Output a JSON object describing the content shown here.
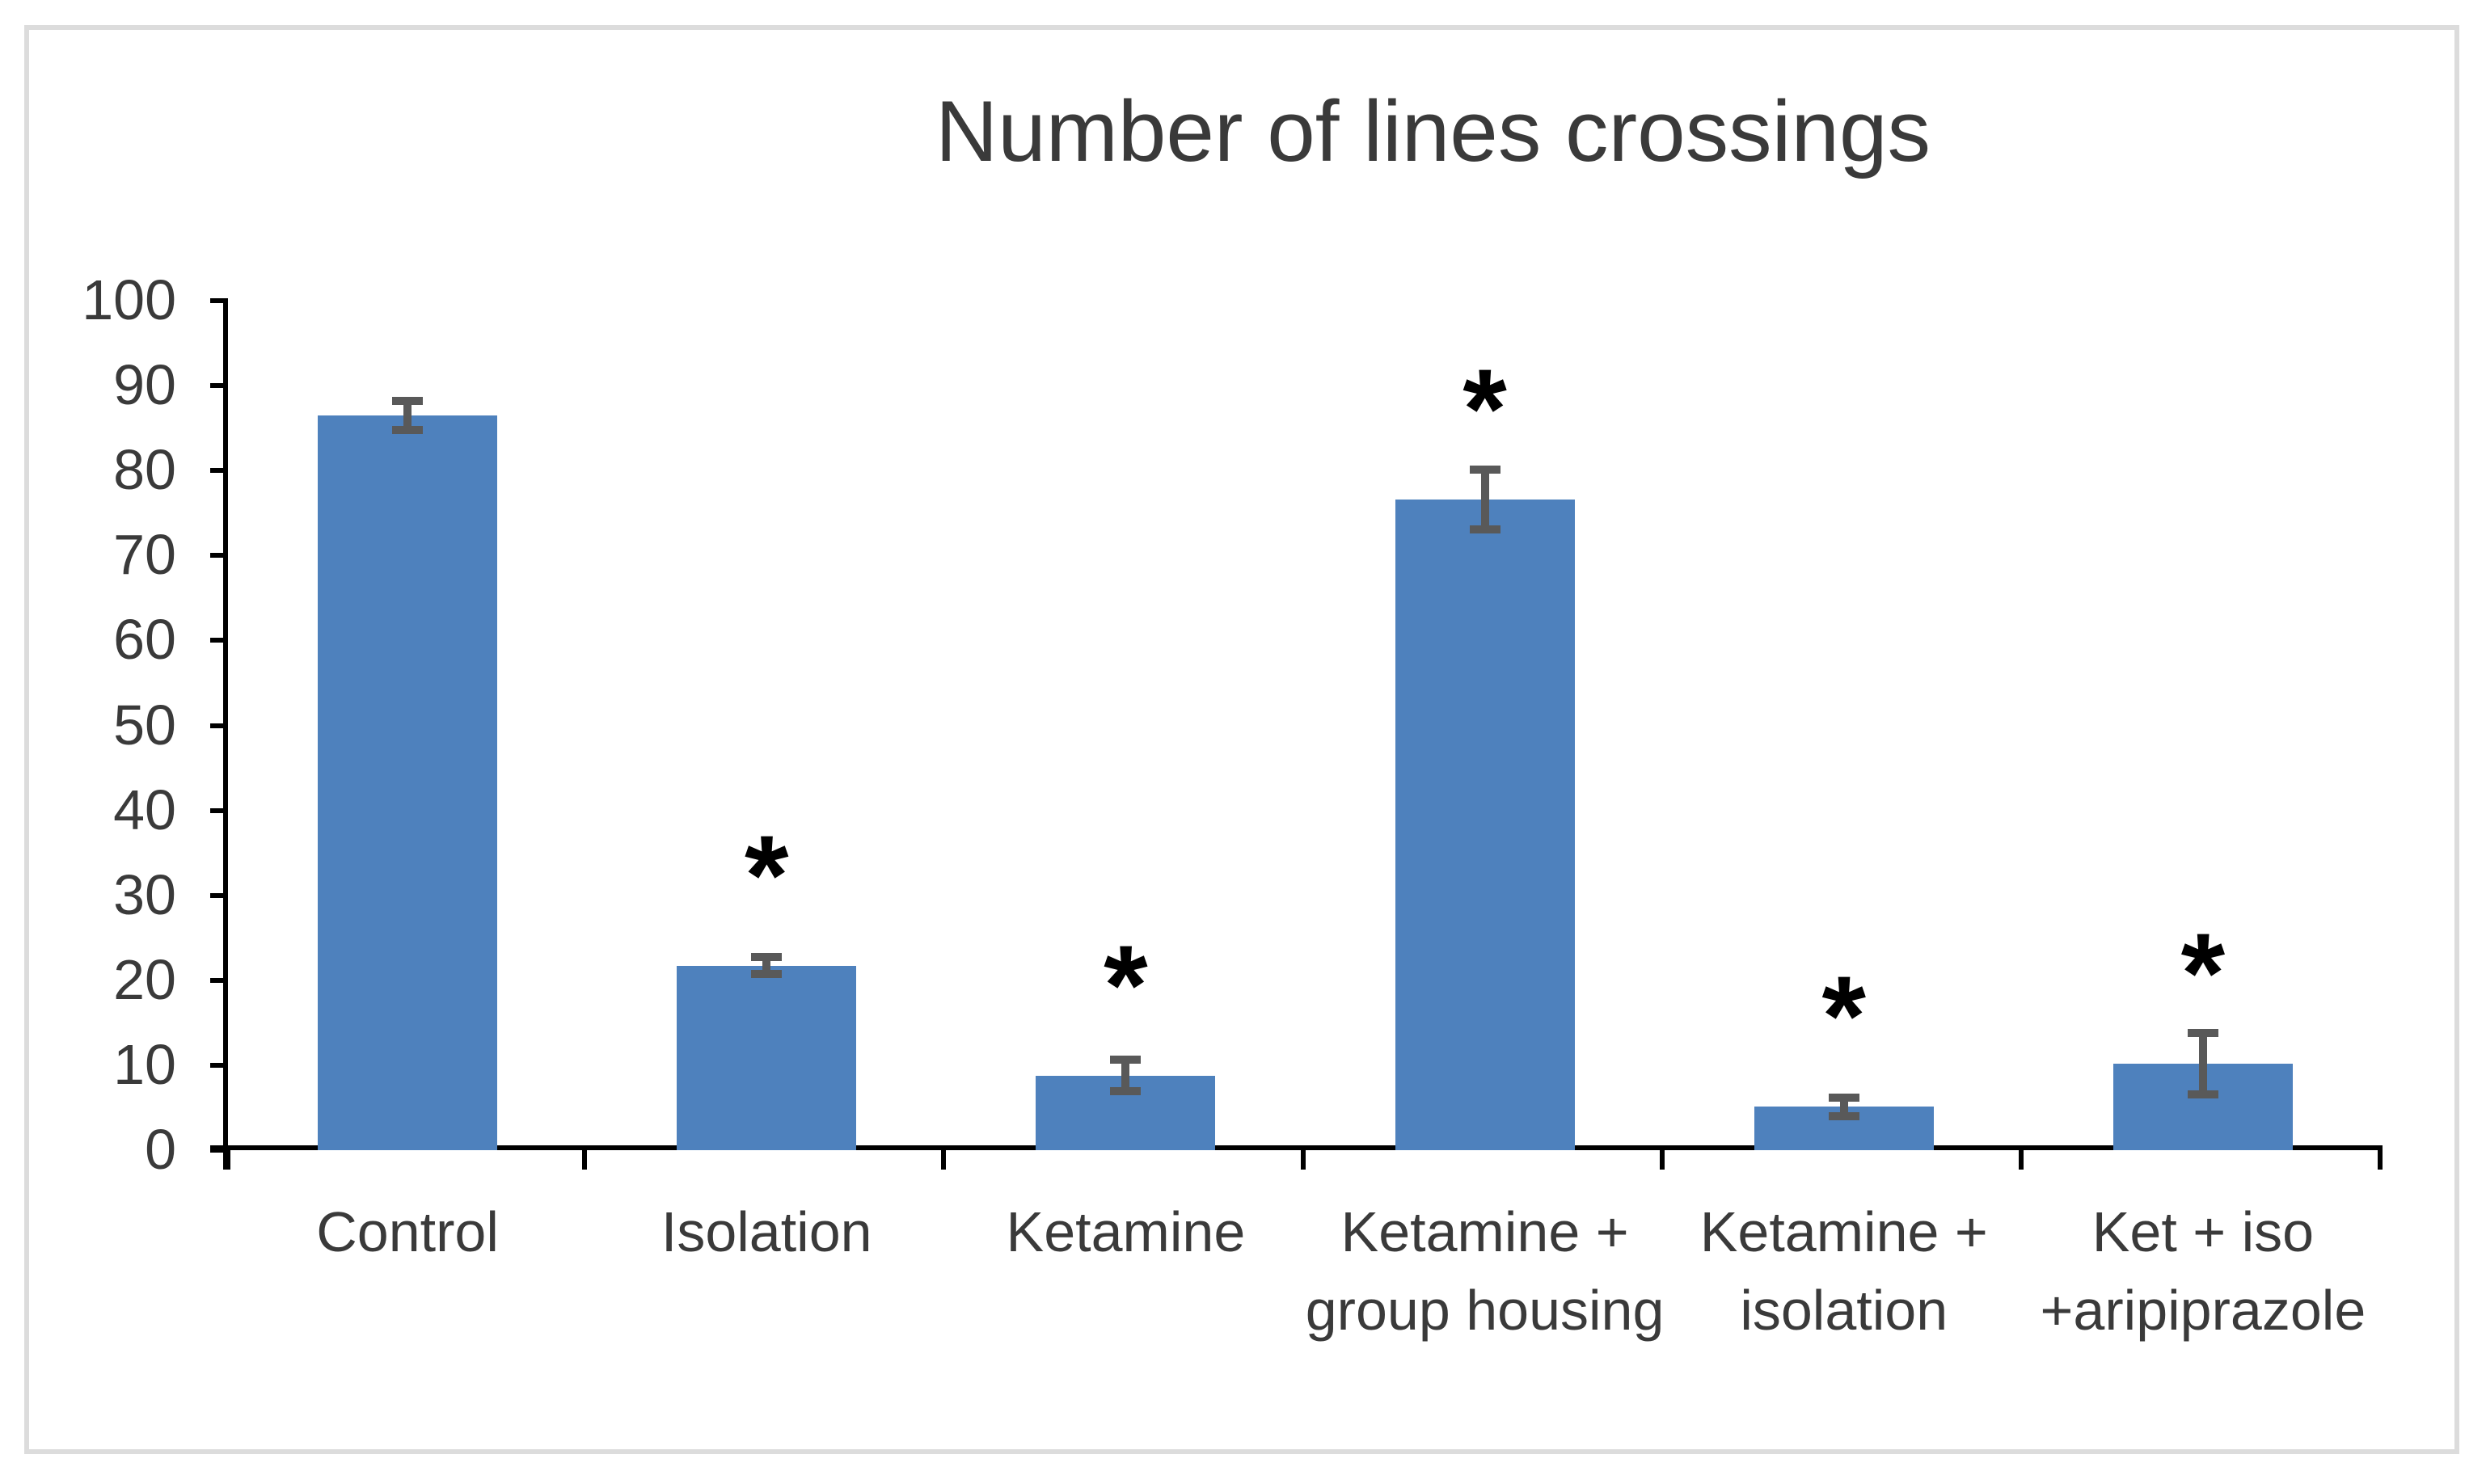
{
  "figure": {
    "border_color": "#dcdcdc",
    "background_color": "#ffffff"
  },
  "chart_data": {
    "type": "bar",
    "title": "Number of lines crossings",
    "categories": [
      "Control",
      "Isolation",
      "Ketamine",
      "Ketamine + group housing",
      "Ketamine + isolation",
      "Ket + iso +aripiprazole"
    ],
    "category_lines": [
      [
        "Control"
      ],
      [
        "Isolation"
      ],
      [
        "Ketamine"
      ],
      [
        "Ketamine +",
        "group housing"
      ],
      [
        "Ketamine +",
        "isolation"
      ],
      [
        "Ket + iso",
        "+aripiprazole"
      ]
    ],
    "values": [
      86.5,
      21.7,
      8.8,
      76.6,
      5.1,
      10.2
    ],
    "error_bars": [
      1.7,
      1.0,
      1.9,
      3.5,
      1.1,
      3.6
    ],
    "significance": [
      false,
      true,
      true,
      true,
      true,
      true
    ],
    "significance_marker": "*",
    "xlabel": "",
    "ylabel": "",
    "ylim": [
      0,
      100
    ],
    "ytick_step": 10,
    "ytick_labels": [
      "0",
      "10",
      "20",
      "30",
      "40",
      "50",
      "60",
      "70",
      "80",
      "90",
      "100"
    ],
    "grid": false,
    "legend": null,
    "bar_color": "#4e81bd",
    "error_bar_color": "#595959",
    "axis_color": "#000000",
    "text_color": "#3a3a3a"
  }
}
